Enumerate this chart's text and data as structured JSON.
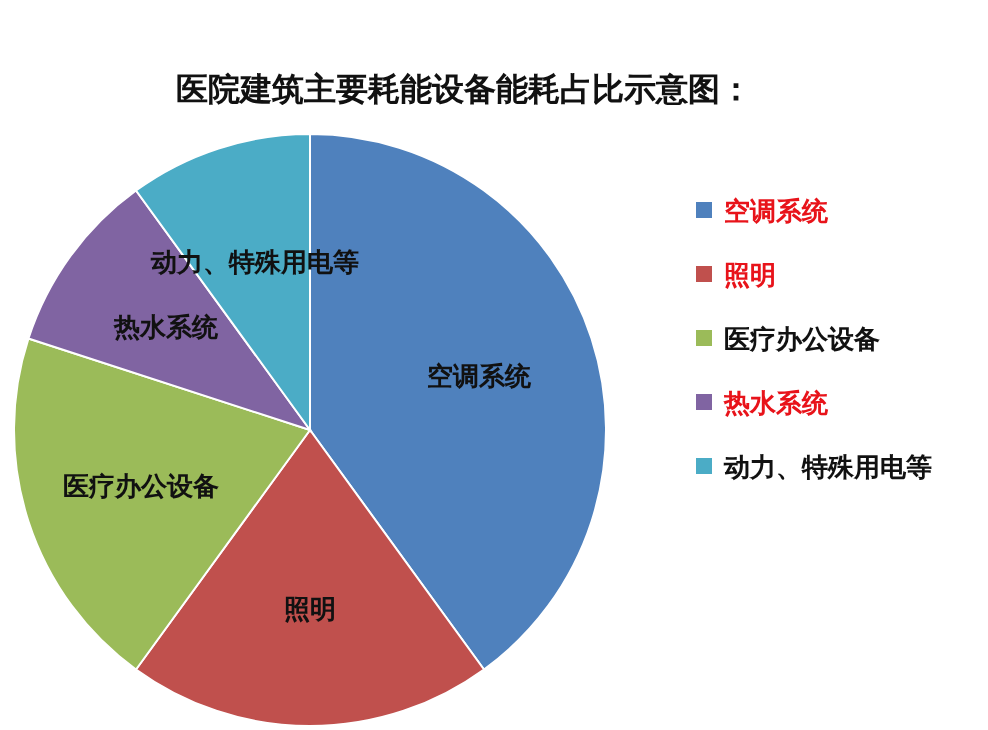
{
  "chart_data": {
    "type": "pie",
    "title": "医院建筑主要耗能设备能耗占比示意图：",
    "categories": [
      "空调系统",
      "照明",
      "医疗办公设备",
      "热水系统",
      "动力、特殊用电等"
    ],
    "values": [
      40,
      20,
      20,
      10,
      10
    ],
    "colors": [
      "#4f81bd",
      "#c0504d",
      "#9bbb59",
      "#8064a2",
      "#4bacc6"
    ],
    "legend": "right"
  }
}
